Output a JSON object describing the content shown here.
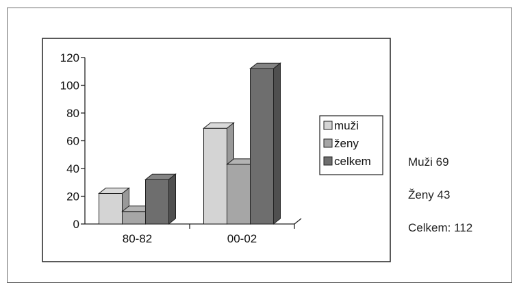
{
  "chart_data": {
    "type": "bar",
    "three_d": true,
    "categories": [
      "80-82",
      "00-02"
    ],
    "series": [
      {
        "name": "muži",
        "color": "#d4d4d4",
        "values": [
          22,
          69
        ]
      },
      {
        "name": "ženy",
        "color": "#a6a6a6",
        "values": [
          9,
          43
        ]
      },
      {
        "name": "celkem",
        "color": "#6e6e6e",
        "values": [
          32,
          112
        ]
      }
    ],
    "ylim": [
      0,
      120
    ],
    "yticks": [
      0,
      20,
      40,
      60,
      80,
      100,
      120
    ],
    "title": "",
    "xlabel": "",
    "ylabel": "",
    "grid": false,
    "legend_position": "right"
  },
  "side_stats": {
    "muzi": "Muži 69",
    "zeny": "Ženy 43",
    "celkem": "Celkem: 112"
  }
}
